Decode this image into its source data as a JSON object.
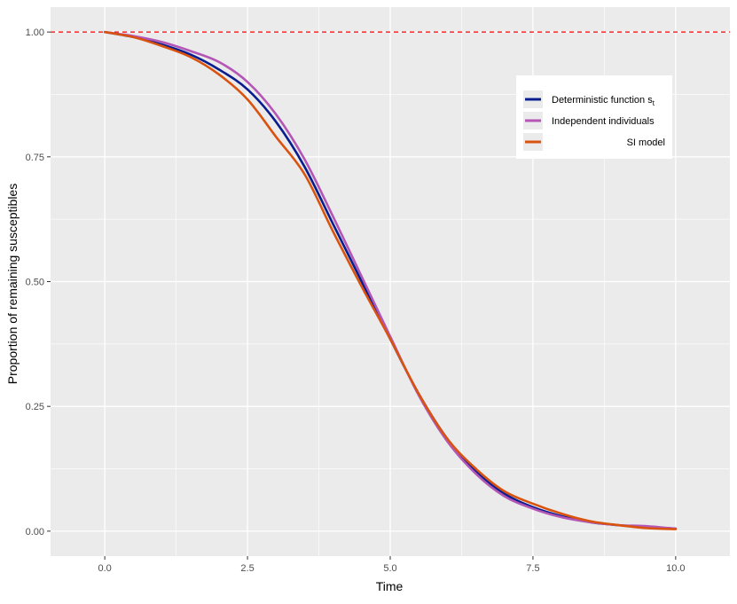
{
  "chart_data": {
    "type": "line",
    "title": "",
    "xlabel": "Time",
    "ylabel": "Proportion of remaining susceptibles",
    "xlim": [
      -0.95,
      10.95
    ],
    "ylim": [
      -0.05,
      1.05
    ],
    "x_ticks": [
      0,
      2.5,
      5,
      7.5,
      10
    ],
    "x_tick_labels": [
      "0.0",
      "2.5",
      "5.0",
      "7.5",
      "10.0"
    ],
    "y_ticks": [
      0,
      0.25,
      0.5,
      0.75,
      1
    ],
    "y_tick_labels": [
      "0.00",
      "0.25",
      "0.50",
      "0.75",
      "1.00"
    ],
    "grid": true,
    "background": "#ebebeb",
    "reference_line": {
      "y": 1.0,
      "color": "#ff0000",
      "style": "dashed"
    },
    "legend": {
      "position": "top-right",
      "entries": [
        {
          "label": "Deterministic function s",
          "subscript": "t",
          "color": "#0a1d8f"
        },
        {
          "label": "Independent individuals",
          "subscript": "",
          "color": "#b356b6"
        },
        {
          "label": "SI model",
          "subscript": "",
          "color": "#d9530f"
        }
      ]
    },
    "series": [
      {
        "name": "Deterministic function s_t",
        "color": "#0a1d8f",
        "x": [
          0,
          0.5,
          1,
          1.5,
          2,
          2.5,
          3,
          3.5,
          4,
          4.5,
          5,
          5.5,
          6,
          6.5,
          7,
          7.5,
          8,
          8.5,
          9,
          9.5,
          10
        ],
        "y": [
          1.0,
          0.99,
          0.975,
          0.955,
          0.925,
          0.885,
          0.82,
          0.73,
          0.615,
          0.5,
          0.385,
          0.275,
          0.185,
          0.12,
          0.075,
          0.048,
          0.03,
          0.018,
          0.012,
          0.008,
          0.005
        ]
      },
      {
        "name": "Independent individuals",
        "color": "#b356b6",
        "x": [
          0,
          0.5,
          1,
          1.5,
          2,
          2.5,
          3,
          3.5,
          4,
          4.5,
          5,
          5.5,
          6,
          6.5,
          7,
          7.5,
          8,
          8.5,
          9,
          9.5,
          10
        ],
        "y": [
          1.0,
          0.992,
          0.98,
          0.962,
          0.94,
          0.9,
          0.835,
          0.745,
          0.63,
          0.51,
          0.39,
          0.272,
          0.18,
          0.115,
          0.07,
          0.045,
          0.028,
          0.018,
          0.012,
          0.01,
          0.005
        ]
      },
      {
        "name": "SI model",
        "color": "#d9530f",
        "x": [
          0,
          0.5,
          1,
          1.5,
          2,
          2.5,
          3,
          3.5,
          4,
          4.5,
          5,
          5.5,
          6,
          6.5,
          7,
          7.5,
          8,
          8.5,
          9,
          9.5,
          10
        ],
        "y": [
          1.0,
          0.99,
          0.972,
          0.95,
          0.915,
          0.865,
          0.79,
          0.715,
          0.6,
          0.49,
          0.385,
          0.275,
          0.185,
          0.125,
          0.08,
          0.055,
          0.035,
          0.02,
          0.012,
          0.006,
          0.004
        ]
      }
    ]
  }
}
